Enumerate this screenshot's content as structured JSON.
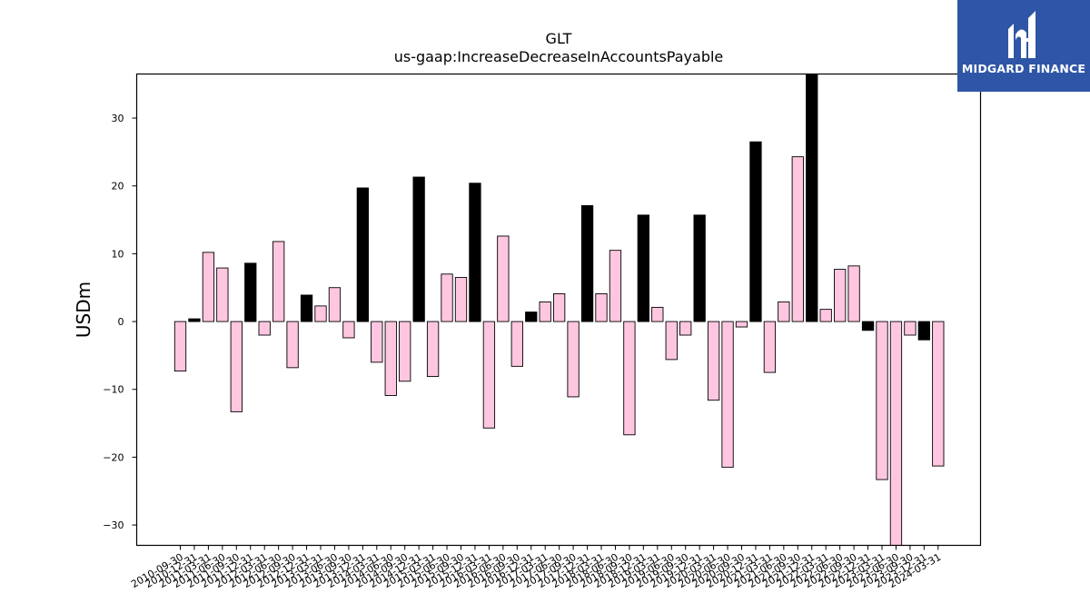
{
  "brand": {
    "name": "MIDGARD FINANCE",
    "color": "#2f56a6",
    "icon": "midgard-logo-icon"
  },
  "chart_data": {
    "type": "bar",
    "title": "GLT",
    "subtitle": "us-gaap:IncreaseDecreaseInAccountsPayable",
    "xlabel": "",
    "ylabel": "USDm",
    "ylim": [
      -33,
      36.5
    ],
    "yticks": [
      -30,
      -20,
      -10,
      0,
      10,
      20,
      30
    ],
    "grid": false,
    "colors": {
      "quarterly": "#ffc6e0",
      "annual": "#000000",
      "edge": "#000000"
    },
    "categories": [
      "2010-09-30",
      "2010-12-31",
      "2011-03-31",
      "2011-06-30",
      "2011-09-30",
      "2011-12-31",
      "2012-03-31",
      "2012-06-30",
      "2012-09-30",
      "2012-12-31",
      "2013-03-31",
      "2013-06-30",
      "2013-09-30",
      "2013-12-31",
      "2014-03-31",
      "2014-06-30",
      "2014-09-30",
      "2014-12-31",
      "2015-03-31",
      "2015-06-30",
      "2015-09-30",
      "2015-12-31",
      "2016-03-31",
      "2016-06-30",
      "2016-09-30",
      "2016-12-31",
      "2017-03-31",
      "2017-06-30",
      "2017-09-30",
      "2017-12-31",
      "2018-03-31",
      "2018-06-30",
      "2018-09-30",
      "2018-12-31",
      "2019-03-31",
      "2019-06-30",
      "2019-09-30",
      "2019-12-31",
      "2020-03-31",
      "2020-06-30",
      "2020-09-30",
      "2020-12-31",
      "2021-03-31",
      "2021-06-30",
      "2021-09-30",
      "2021-12-31",
      "2022-03-31",
      "2022-06-30",
      "2022-09-30",
      "2022-12-31",
      "2023-03-31",
      "2023-06-30",
      "2023-09-30",
      "2023-12-31",
      "2024-03-31"
    ],
    "values": [
      -7.3,
      0.4,
      10.2,
      7.9,
      -13.3,
      8.6,
      -2.0,
      11.8,
      -6.8,
      3.9,
      2.3,
      5.0,
      -2.4,
      19.7,
      -6.0,
      -10.9,
      -8.8,
      21.3,
      -8.1,
      7.0,
      6.5,
      20.4,
      -15.7,
      12.6,
      -6.6,
      1.4,
      2.9,
      4.1,
      -11.1,
      17.1,
      4.1,
      10.5,
      -16.7,
      15.7,
      2.1,
      -5.6,
      -2.0,
      15.7,
      -11.6,
      -21.5,
      -0.8,
      26.5,
      -7.5,
      2.9,
      24.3,
      36.5,
      1.8,
      7.7,
      8.2,
      -1.3,
      -23.3,
      -33.0,
      -2.0,
      -2.7,
      -21.3
    ],
    "annual": [
      false,
      true,
      false,
      false,
      false,
      true,
      false,
      false,
      false,
      true,
      false,
      false,
      false,
      true,
      false,
      false,
      false,
      true,
      false,
      false,
      false,
      true,
      false,
      false,
      false,
      true,
      false,
      false,
      false,
      true,
      false,
      false,
      false,
      true,
      false,
      false,
      false,
      true,
      false,
      false,
      false,
      true,
      false,
      false,
      false,
      true,
      false,
      false,
      false,
      true,
      false,
      false,
      false,
      true,
      false
    ]
  }
}
